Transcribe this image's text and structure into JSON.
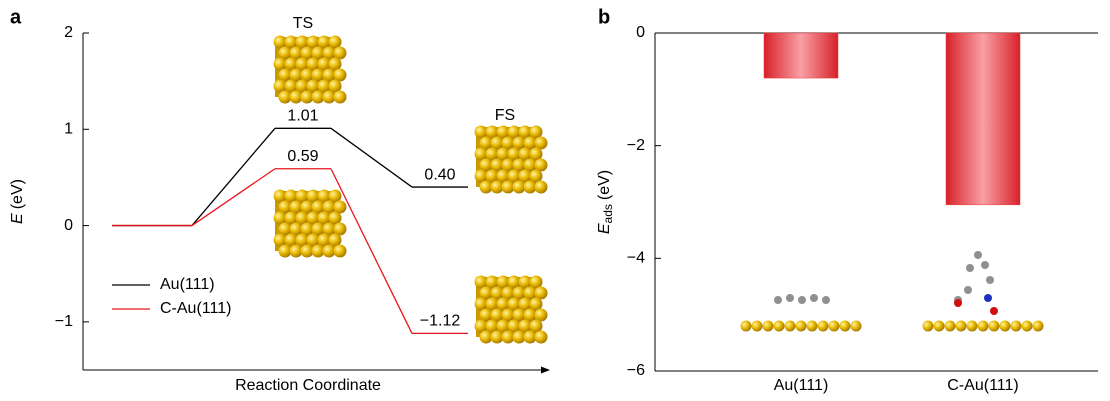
{
  "chart_data": [
    {
      "type": "energy-profile",
      "panel": "a",
      "categories": [
        null,
        "TS",
        "FS"
      ],
      "y_label": {
        "symbol": "E",
        "unit": "(eV)"
      },
      "x_label": "Reaction Coordinate",
      "series": [
        {
          "name": "Au(111)",
          "color": "#000000",
          "values": [
            0,
            1.01,
            0.4
          ],
          "value_labels": [
            null,
            "1.01",
            "0.40"
          ]
        },
        {
          "name": "C-Au(111)",
          "color": "#e8141c",
          "values": [
            0,
            0.59,
            -1.12
          ],
          "value_labels": [
            null,
            "0.59",
            "−1.12"
          ]
        }
      ],
      "ylim": [
        -1.5,
        2
      ],
      "yticks": [
        {
          "value": -1,
          "label": "−1"
        },
        0,
        1,
        2
      ],
      "legend": "lower-left"
    },
    {
      "type": "bar",
      "panel": "b",
      "categories": [
        "Au(111)",
        "C-Au(111)"
      ],
      "values": [
        -0.8,
        -3.05
      ],
      "color": "#e8343c",
      "y_label": {
        "symbol": "E",
        "subscript": "ads",
        "unit": "(eV)"
      },
      "ylim": [
        -6,
        0
      ],
      "yticks": [
        {
          "value": -6,
          "label": "−6"
        },
        {
          "value": -4,
          "label": "−4"
        },
        {
          "value": -2,
          "label": "−2"
        },
        0
      ]
    }
  ]
}
